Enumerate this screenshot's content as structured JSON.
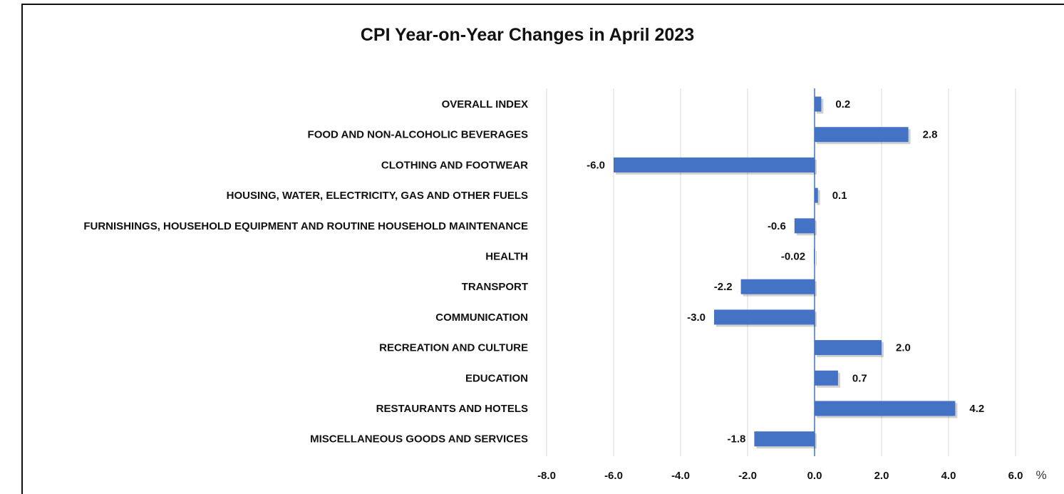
{
  "chart_data": {
    "type": "bar",
    "orientation": "horizontal",
    "title": "CPI Year-on-Year Changes in April 2023",
    "unit_label": "%",
    "categories": [
      "OVERALL INDEX",
      "FOOD AND NON-ALCOHOLIC BEVERAGES",
      "CLOTHING AND FOOTWEAR",
      "HOUSING, WATER, ELECTRICITY, GAS AND OTHER FUELS",
      "FURNISHINGS, HOUSEHOLD EQUIPMENT AND ROUTINE HOUSEHOLD MAINTENANCE",
      "HEALTH",
      "TRANSPORT",
      "COMMUNICATION",
      "RECREATION AND CULTURE",
      "EDUCATION",
      "RESTAURANTS AND HOTELS",
      "MISCELLANEOUS GOODS AND SERVICES"
    ],
    "values": [
      0.2,
      2.8,
      -6.0,
      0.1,
      -0.6,
      -0.02,
      -2.2,
      -3.0,
      2.0,
      0.7,
      4.2,
      -1.8
    ],
    "data_labels": [
      "0.2",
      "2.8",
      "-6.0",
      "0.1",
      "-0.6",
      "-0.02",
      "-2.2",
      "-3.0",
      "2.0",
      "0.7",
      "4.2",
      "-1.8"
    ],
    "xlim": [
      -8.0,
      6.0
    ],
    "xticks": [
      -8.0,
      -6.0,
      -4.0,
      -2.0,
      0.0,
      2.0,
      4.0,
      6.0
    ],
    "xtick_labels": [
      "-8.0",
      "-6.0",
      "-4.0",
      "-2.0",
      "0.0",
      "2.0",
      "4.0",
      "6.0"
    ],
    "grid": true,
    "legend": "none",
    "bar_color": "#4472C4",
    "grid_color": "#d9d9d9",
    "zero_line_color": "#4472C4"
  }
}
